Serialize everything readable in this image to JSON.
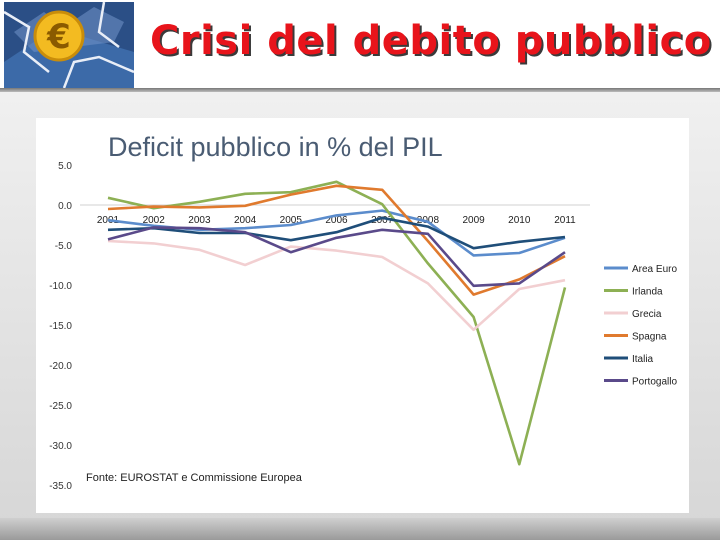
{
  "slide": {
    "title": "Crisi del debito pubblico"
  },
  "colors": {
    "title": "#e8141b"
  },
  "chart_data": {
    "type": "line",
    "title": "Deficit pubblico in % del PIL",
    "source": "Fonte: EUROSTAT e Commissione Europea",
    "categories": [
      "2001",
      "2002",
      "2003",
      "2004",
      "2005",
      "2006",
      "2007",
      "2008",
      "2009",
      "2010",
      "2011"
    ],
    "y_ticks": [
      "5.0",
      "0.0",
      "-5.0",
      "-10.0",
      "-15.0",
      "-20.0",
      "-25.0",
      "-30.0",
      "-35.0"
    ],
    "ylim": [
      -35,
      5
    ],
    "legend_position": "right",
    "series": [
      {
        "name": "Area Euro",
        "color": "#5b8ccc",
        "values": [
          -1.9,
          -2.6,
          -3.1,
          -2.9,
          -2.5,
          -1.3,
          -0.7,
          -2.1,
          -6.3,
          -6.0,
          -4.1
        ]
      },
      {
        "name": "Irlanda",
        "color": "#8db054",
        "values": [
          0.9,
          -0.4,
          0.4,
          1.4,
          1.6,
          2.9,
          0.1,
          -7.3,
          -14.0,
          -32.4,
          -10.3
        ]
      },
      {
        "name": "Grecia",
        "color": "#f2cfd1",
        "values": [
          -4.5,
          -4.8,
          -5.6,
          -7.5,
          -5.2,
          -5.7,
          -6.5,
          -9.8,
          -15.6,
          -10.5,
          -9.4
        ]
      },
      {
        "name": "Spagna",
        "color": "#e07a2e",
        "values": [
          -0.5,
          -0.2,
          -0.3,
          -0.1,
          1.3,
          2.4,
          1.9,
          -4.5,
          -11.2,
          -9.3,
          -6.4
        ]
      },
      {
        "name": "Italia",
        "color": "#1f4e79",
        "values": [
          -3.1,
          -2.9,
          -3.5,
          -3.5,
          -4.4,
          -3.4,
          -1.6,
          -2.7,
          -5.4,
          -4.6,
          -4.0
        ]
      },
      {
        "name": "Portogallo",
        "color": "#5a4a8a",
        "values": [
          -4.3,
          -2.8,
          -2.9,
          -3.4,
          -5.9,
          -4.1,
          -3.1,
          -3.6,
          -10.1,
          -9.8,
          -5.9
        ]
      }
    ]
  }
}
